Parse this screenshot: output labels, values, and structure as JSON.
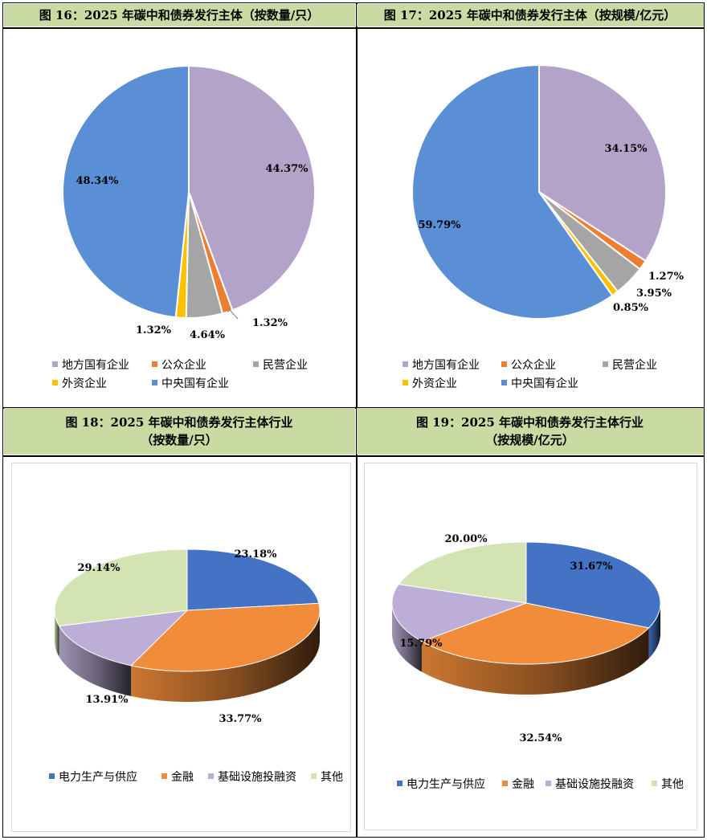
{
  "panels": {
    "p16": {
      "title": "图 16：2025 年碳中和债券发行主体（按数量/只）"
    },
    "p17": {
      "title": "图 17：2025 年碳中和债券发行主体（按规模/亿元）"
    },
    "p18": {
      "title": "图 18：2025 年碳中和债券发行主体行业\n（按数量/只）"
    },
    "p19": {
      "title": "图 19：2025 年碳中和债券发行主体行业\n（按规模/亿元）"
    }
  },
  "colors": {
    "lavender": "#b4a3c9",
    "orange": "#ed7d31",
    "gray": "#a5a5a5",
    "gold": "#ffc000",
    "blue": "#5b8fd5",
    "blue3d": "#4472c4",
    "orange3d": "#f08c3a",
    "lavender3d": "#bcaed6",
    "green3d": "#d4e3b2"
  },
  "chart_data": [
    {
      "type": "pie",
      "title": "图 16：2025 年碳中和债券发行主体（按数量/只）",
      "categories": [
        "地方国有企业",
        "公众企业",
        "民营企业",
        "外资企业",
        "中央国有企业"
      ],
      "values": [
        44.37,
        1.32,
        4.64,
        1.32,
        48.34
      ],
      "labels": [
        "44.37%",
        "1.32%",
        "4.64%",
        "1.32%",
        "48.34%"
      ],
      "legend_position": "bottom"
    },
    {
      "type": "pie",
      "title": "图 17：2025 年碳中和债券发行主体（按规模/亿元）",
      "categories": [
        "地方国有企业",
        "公众企业",
        "民营企业",
        "外资企业",
        "中央国有企业"
      ],
      "values": [
        34.15,
        1.27,
        3.95,
        0.85,
        59.79
      ],
      "labels": [
        "34.15%",
        "1.27%",
        "3.95%",
        "0.85%",
        "59.79%"
      ],
      "legend_position": "bottom"
    },
    {
      "type": "pie",
      "title": "图 18：2025 年碳中和债券发行主体行业（按数量/只）",
      "categories": [
        "电力生产与供应",
        "金融",
        "基础设施投融资",
        "其他"
      ],
      "values": [
        23.18,
        33.77,
        13.91,
        29.14
      ],
      "labels": [
        "23.18%",
        "33.77%",
        "13.91%",
        "29.14%"
      ],
      "legend_position": "bottom"
    },
    {
      "type": "pie",
      "title": "图 19：2025 年碳中和债券发行主体行业（按规模/亿元）",
      "categories": [
        "电力生产与供应",
        "金融",
        "基础设施投融资",
        "其他"
      ],
      "values": [
        31.67,
        32.54,
        15.79,
        20.0
      ],
      "labels": [
        "31.67%",
        "32.54%",
        "15.79%",
        "20.00%"
      ],
      "legend_position": "bottom"
    }
  ]
}
